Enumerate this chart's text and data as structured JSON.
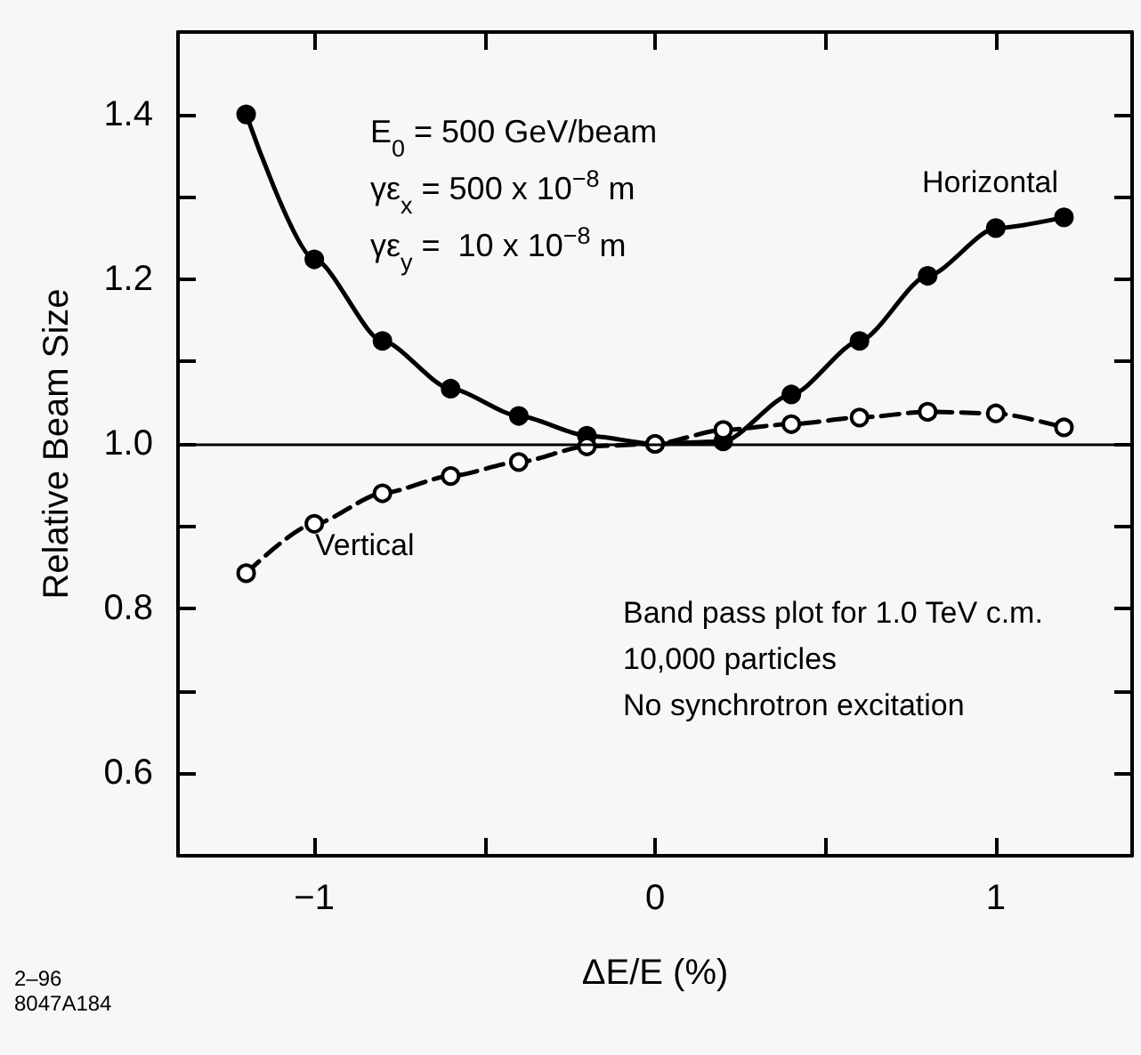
{
  "chart_data": {
    "type": "line",
    "xlabel": "ΔE/E (%)",
    "ylabel": "Relative Beam Size",
    "x": [
      -1.2,
      -1.0,
      -0.8,
      -0.6,
      -0.4,
      -0.2,
      0,
      0.2,
      0.4,
      0.6,
      0.8,
      1.0,
      1.2
    ],
    "series": [
      {
        "color": "#000000",
        "line_style": "solid",
        "marker": "circle",
        "values": [
          1.4,
          1.224,
          1.125,
          1.067,
          1.034,
          1.01,
          1.0,
          1.003,
          1.06,
          1.125,
          1.204,
          1.262,
          1.275
        ]
      },
      {
        "color": "#000000",
        "line_style": "dashed",
        "marker": "circle",
        "values": [
          0.843,
          0.903,
          0.94,
          0.961,
          0.978,
          0.997,
          1.0,
          1.017,
          1.024,
          1.032,
          1.039,
          1.037,
          1.02
        ]
      }
    ],
    "xlim": [
      -1.4,
      1.4
    ],
    "ylim": [
      0.5,
      1.5
    ],
    "xticks": [
      {
        "value": -1,
        "label": "−1"
      },
      {
        "value": -0.5,
        "label": null
      },
      0,
      {
        "value": 0.5,
        "label": null
      },
      1
    ],
    "yticks": [
      0.6,
      {
        "value": 0.7,
        "label": null
      },
      0.8,
      {
        "value": 0.9,
        "label": null
      },
      {
        "value": 1,
        "label": "1.0"
      },
      {
        "value": 1.1,
        "label": null
      },
      1.2,
      {
        "value": 1.3,
        "label": null
      },
      1.4
    ],
    "ref_lines": [
      {
        "axis": "y",
        "value": 1,
        "color": "#000000",
        "line_style": "solid"
      }
    ],
    "annotations": [
      "Horizontal",
      "Vertical",
      "E$_{0}$ = 500 GeV/beam",
      "γε$_{x}$ = 500 x 10$^{−8}$ m",
      "γε$_{y}$ =  10 x 10$^{−8}$ m",
      "Band pass plot for 1.0 TeV c.m.",
      "10,000 particles",
      "No synchrotron excitation",
      "2–96",
      "8047A184"
    ],
    "grid": false
  }
}
